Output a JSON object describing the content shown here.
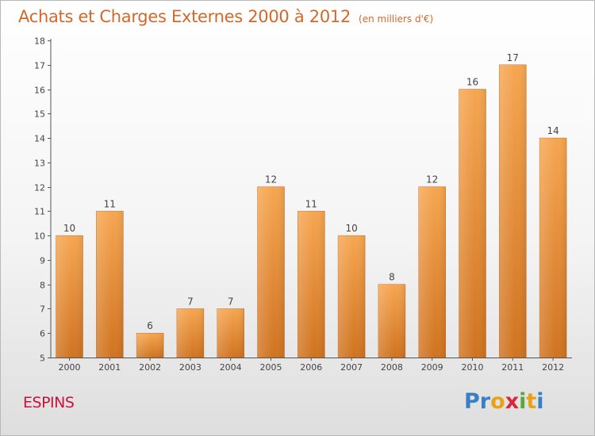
{
  "header": {
    "title": "Achats et Charges Externes 2000 à 2012",
    "unit": "(en milliers d'€)"
  },
  "location": "ESPINS",
  "brand": {
    "letters": [
      {
        "char": "P",
        "color": "#3a7fc4"
      },
      {
        "char": "r",
        "color": "#3a7fc4"
      },
      {
        "char": "o",
        "color": "#e8a21a"
      },
      {
        "char": "x",
        "color": "#d9283e"
      },
      {
        "char": "i",
        "color": "#5aa83a"
      },
      {
        "char": "t",
        "color": "#e8a21a"
      },
      {
        "char": "i",
        "color": "#3a7fc4"
      }
    ]
  },
  "colors": {
    "title": "#d2692a",
    "location": "#c8143c",
    "bar_light": "#f6a650",
    "bar_dark": "#d07320",
    "axis": "#555555"
  },
  "chart_data": {
    "type": "bar",
    "title": "Achats et Charges Externes 2000 à 2012",
    "subtitle": "(en milliers d'€)",
    "categories": [
      "2000",
      "2001",
      "2002",
      "2003",
      "2004",
      "2005",
      "2006",
      "2007",
      "2008",
      "2009",
      "2010",
      "2011",
      "2012"
    ],
    "values": [
      10,
      11,
      6,
      7,
      7,
      12,
      11,
      10,
      8,
      12,
      16,
      17,
      14
    ],
    "data_labels": [
      "10",
      "11",
      "6",
      "7",
      "7",
      "12",
      "11",
      "10",
      "8",
      "12",
      "16",
      "17",
      "14"
    ],
    "ylim": [
      5,
      18
    ],
    "yticks": [
      "5",
      "6",
      "7",
      "8",
      "9",
      "10",
      "11",
      "12",
      "13",
      "14",
      "15",
      "16",
      "17",
      "18"
    ],
    "xlabel": "",
    "ylabel": "",
    "grid": false,
    "legend": "none"
  }
}
